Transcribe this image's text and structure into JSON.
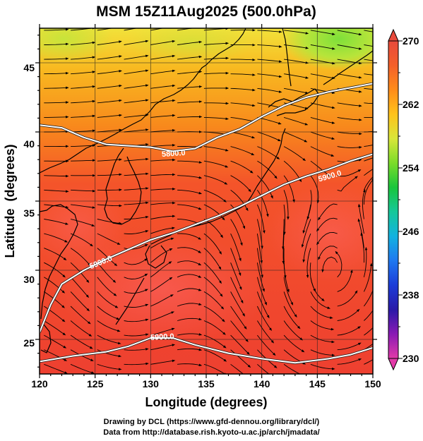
{
  "title": "MSM 15Z11Aug2025 (500.0hPa)",
  "xlabel": "Longitude (degrees)",
  "ylabel": "Latitude  (degrees)",
  "x_ticks": [
    "120",
    "125",
    "130",
    "135",
    "140",
    "145",
    "150"
  ],
  "y_ticks": [
    "25",
    "30",
    "35",
    "40",
    "45"
  ],
  "colorbar": {
    "ticks": [
      "270",
      "262",
      "254",
      "246",
      "238",
      "230"
    ],
    "min": 230,
    "max": 270,
    "colors_top_to_bottom": [
      "#e84a3c",
      "#f4602a",
      "#ff8c1a",
      "#ffc21a",
      "#d9e63a",
      "#7bdc2a",
      "#19c63c",
      "#16c79a",
      "#13b2e0",
      "#1f78f0",
      "#1c3cd8",
      "#2a1aa8",
      "#8a1ab4",
      "#e23aa8"
    ]
  },
  "contour_labels": [
    "5800.0",
    "5900.0",
    "5900.0",
    "5900.0"
  ],
  "credits": {
    "line1": "Drawing by DCL (https://www.gfd-dennou.org/library/dcl/)",
    "line2": "Data from http://database.rish.kyoto-u.ac.jp/arch/jmadata/"
  },
  "chart_data": {
    "type": "heatmap",
    "title": "MSM 15Z11Aug2025 (500.0hPa)",
    "xlabel": "Longitude (degrees)",
    "ylabel": "Latitude  (degrees)",
    "xlim": [
      120,
      150
    ],
    "ylim": [
      22.5,
      47.5
    ],
    "colorbar_range": [
      230,
      270
    ],
    "contours": [
      {
        "label": "5800.0",
        "points": [
          [
            120,
            40.5
          ],
          [
            122,
            40.3
          ],
          [
            124,
            39.6
          ],
          [
            126,
            39.1
          ],
          [
            128,
            39.0
          ],
          [
            130,
            38.9
          ],
          [
            132,
            38.6
          ],
          [
            134,
            38.8
          ],
          [
            136,
            39.6
          ],
          [
            138,
            40.2
          ],
          [
            140,
            41.1
          ],
          [
            142,
            41.9
          ],
          [
            144,
            42.5
          ],
          [
            146,
            42.9
          ],
          [
            148,
            43.2
          ],
          [
            150,
            43.5
          ]
        ]
      },
      {
        "label": "5900.0",
        "points": [
          [
            120,
            25.5
          ],
          [
            121,
            27.5
          ],
          [
            122,
            29.0
          ],
          [
            124,
            30.0
          ],
          [
            126,
            30.8
          ],
          [
            128,
            31.5
          ],
          [
            130,
            32.2
          ],
          [
            132,
            32.7
          ],
          [
            134,
            33.3
          ],
          [
            136,
            33.9
          ],
          [
            138,
            34.6
          ],
          [
            140,
            35.4
          ],
          [
            142,
            36.2
          ],
          [
            144,
            36.8
          ],
          [
            146,
            37.3
          ],
          [
            148,
            37.9
          ],
          [
            150,
            38.4
          ]
        ]
      },
      {
        "label": "5900.0",
        "points": [
          [
            120,
            23.4
          ],
          [
            123,
            23.8
          ],
          [
            126,
            24.1
          ],
          [
            128,
            24.5
          ],
          [
            130,
            25.1
          ],
          [
            132,
            25.1
          ],
          [
            134,
            24.6
          ],
          [
            137,
            24.0
          ],
          [
            140,
            23.6
          ],
          [
            143,
            23.3
          ],
          [
            146,
            23.6
          ],
          [
            148,
            23.9
          ],
          [
            150,
            24.4
          ]
        ]
      }
    ]
  }
}
